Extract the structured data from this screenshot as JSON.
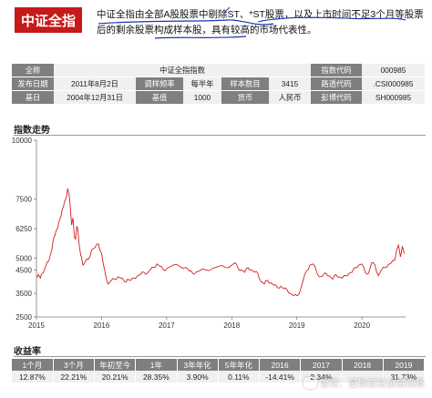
{
  "badge": "中证全指",
  "description": {
    "text": "中证全指由全部A股股票中剔除ST、*ST股票，以及上市时间不足3个月等股票后的剩余股票构成样本股，具有较高的市场代表性。"
  },
  "info": {
    "row1": {
      "l1": "全称",
      "v1": "中证全指指数",
      "l2": "指数代码",
      "v2": "000985"
    },
    "row2": {
      "l1": "发布日期",
      "v1": "2011年8月2日",
      "l2": "调样频率",
      "v2": "每半年",
      "l3": "样本数目",
      "v3": "3415",
      "l4": "路透代码",
      "v4": ".CSI000985"
    },
    "row3": {
      "l1": "基日",
      "v1": "2004年12月31日",
      "l2": "基值",
      "v2": "1000",
      "l3": "货币",
      "v3": "人民币",
      "l4": "彭博代码",
      "v4": "SH000985"
    }
  },
  "trend_title": "指数走势",
  "chart_data": {
    "type": "line",
    "title": "",
    "xlabel": "",
    "ylabel": "",
    "ylim": [
      2500,
      10000
    ],
    "yticks": [
      "10000",
      "7500",
      "6250",
      "5000",
      "4500",
      "3500",
      "2500"
    ],
    "xticks": [
      "2015",
      "2016",
      "2017",
      "2018",
      "2019",
      "2020"
    ],
    "xlim": [
      2015.0,
      2020.67
    ],
    "grid": false,
    "legend": "none",
    "color": "#d02020",
    "series": [
      {
        "x": [
          2015.0,
          2015.03,
          2015.06,
          2015.09,
          2015.12,
          2015.15,
          2015.18,
          2015.21,
          2015.24,
          2015.27,
          2015.3,
          2015.33,
          2015.36,
          2015.39,
          2015.42,
          2015.45,
          2015.48,
          2015.5,
          2015.52,
          2015.54,
          2015.56,
          2015.58,
          2015.6,
          2015.62,
          2015.64,
          2015.66,
          2015.68,
          2015.7,
          2015.72,
          2015.75,
          2015.8,
          2015.85,
          2015.9,
          2015.95,
          2016.0,
          2016.03,
          2016.06,
          2016.1,
          2016.15,
          2016.2,
          2016.25,
          2016.3,
          2016.35,
          2016.4,
          2016.45,
          2016.5,
          2016.55,
          2016.6,
          2016.65,
          2016.7,
          2016.75,
          2016.8,
          2016.85,
          2016.9,
          2016.95,
          2017.0,
          2017.1,
          2017.2,
          2017.3,
          2017.35,
          2017.4,
          2017.45,
          2017.5,
          2017.6,
          2017.7,
          2017.8,
          2017.9,
          2018.0,
          2018.05,
          2018.1,
          2018.15,
          2018.2,
          2018.25,
          2018.3,
          2018.35,
          2018.4,
          2018.45,
          2018.5,
          2018.55,
          2018.6,
          2018.65,
          2018.7,
          2018.75,
          2018.8,
          2018.85,
          2018.9,
          2018.95,
          2019.0,
          2019.05,
          2019.1,
          2019.15,
          2019.2,
          2019.25,
          2019.3,
          2019.35,
          2019.4,
          2019.45,
          2019.5,
          2019.55,
          2019.6,
          2019.65,
          2019.7,
          2019.75,
          2019.8,
          2019.85,
          2019.9,
          2019.95,
          2020.0,
          2020.05,
          2020.1,
          2020.15,
          2020.2,
          2020.25,
          2020.3,
          2020.35,
          2020.4,
          2020.45,
          2020.5,
          2020.53,
          2020.56,
          2020.59,
          2020.62,
          2020.65
        ],
        "values": [
          4220,
          4300,
          4150,
          4350,
          4500,
          4700,
          4850,
          5100,
          5400,
          5900,
          6150,
          6300,
          6650,
          7000,
          7250,
          7500,
          7950,
          7700,
          7200,
          6400,
          6700,
          6000,
          5800,
          6350,
          6100,
          5500,
          5100,
          4900,
          4700,
          4850,
          4950,
          5350,
          5450,
          5600,
          5200,
          4700,
          4300,
          3900,
          4050,
          4100,
          4200,
          4150,
          4000,
          4100,
          4050,
          4150,
          4250,
          4300,
          4400,
          4350,
          4500,
          4600,
          4750,
          4650,
          4500,
          4550,
          4700,
          4650,
          4600,
          4450,
          4350,
          4400,
          4450,
          4500,
          4550,
          4650,
          4600,
          4700,
          4800,
          4550,
          4500,
          4400,
          4600,
          4500,
          4400,
          4350,
          4000,
          3900,
          4050,
          3950,
          3850,
          3750,
          3800,
          3700,
          3650,
          3500,
          3400,
          3400,
          3600,
          4100,
          4450,
          4700,
          4750,
          4450,
          4200,
          4250,
          4350,
          4250,
          4100,
          4300,
          4200,
          4150,
          4250,
          4350,
          4400,
          4600,
          4700,
          4750,
          4400,
          4350,
          4800,
          4700,
          4250,
          4500,
          4600,
          4700,
          4800,
          4900,
          5300,
          5550,
          5050,
          5500,
          5200
        ]
      }
    ]
  },
  "returns": {
    "title": "收益率",
    "headers": [
      "1个月",
      "3个月",
      "年初至今",
      "1年",
      "3年年化",
      "5年年化",
      "2016",
      "2017",
      "2018",
      "2019"
    ],
    "values": [
      "12.87%",
      "22.21%",
      "20.21%",
      "28.35%",
      "3.90%",
      "0.11%",
      "-14.41%",
      "2.34%",
      "",
      "31.73%"
    ]
  },
  "watermark": "雪球：量聚前沿金融观察"
}
